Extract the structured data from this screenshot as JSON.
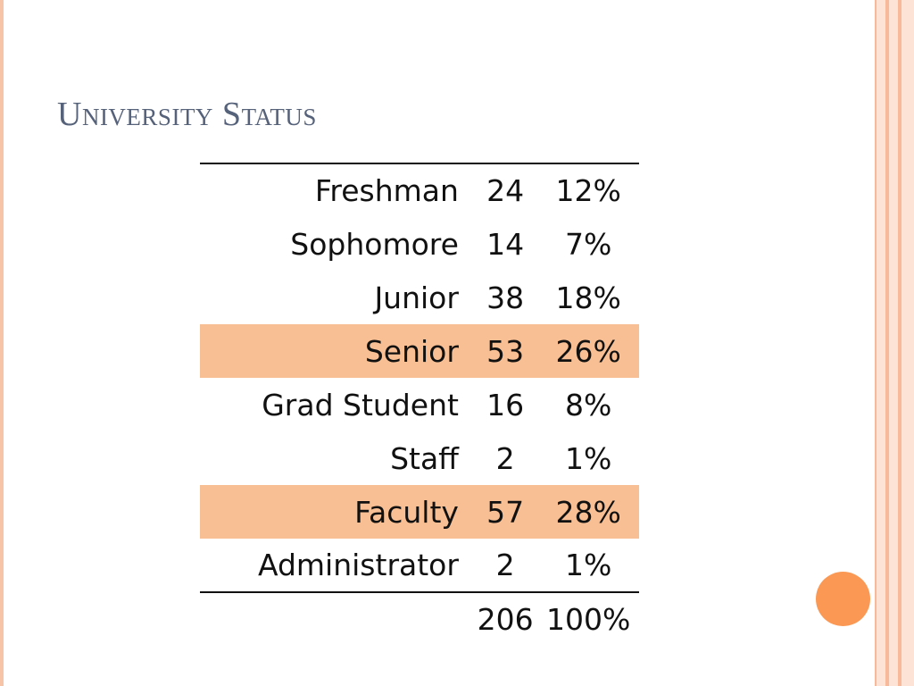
{
  "slide": {
    "title": "University Status"
  },
  "table": {
    "rows": [
      {
        "label": "Freshman",
        "count": "24",
        "percent": "12%",
        "highlight": false
      },
      {
        "label": "Sophomore",
        "count": "14",
        "percent": "7%",
        "highlight": false
      },
      {
        "label": "Junior",
        "count": "38",
        "percent": "18%",
        "highlight": false
      },
      {
        "label": "Senior",
        "count": "53",
        "percent": "26%",
        "highlight": true
      },
      {
        "label": "Grad Student",
        "count": "16",
        "percent": "8%",
        "highlight": false
      },
      {
        "label": "Staff",
        "count": "2",
        "percent": "1%",
        "highlight": false
      },
      {
        "label": "Faculty",
        "count": "57",
        "percent": "28%",
        "highlight": true
      },
      {
        "label": "Administrator",
        "count": "2",
        "percent": "1%",
        "highlight": false
      }
    ],
    "total": {
      "count": "206",
      "percent": "100%"
    }
  },
  "colors": {
    "title": "#56627a",
    "highlight": "#f7bf93",
    "accent_circle": "#fb9954",
    "border_stripe": "#f8b99a"
  }
}
